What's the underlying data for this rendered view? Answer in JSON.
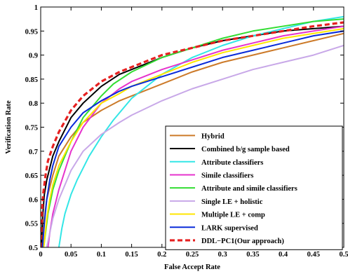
{
  "chart_data": {
    "type": "line",
    "title": "",
    "xlabel": "False Accept Rate",
    "ylabel": "Verification Rate",
    "xlim": [
      0,
      0.5
    ],
    "ylim": [
      0.5,
      1
    ],
    "x_ticks": [
      0,
      0.05,
      0.1,
      0.15,
      0.2,
      0.25,
      0.3,
      0.35,
      0.4,
      0.45,
      0.5
    ],
    "x_tick_labels": [
      "0",
      "0.05",
      "0.1",
      "0.15",
      "0.2",
      "0.25",
      "0.3",
      "0.35",
      "0.4",
      "0.45",
      "0.5"
    ],
    "y_ticks": [
      0.5,
      0.55,
      0.6,
      0.65,
      0.7,
      0.75,
      0.8,
      0.85,
      0.9,
      0.95,
      1
    ],
    "y_tick_labels": [
      "0.5",
      "0.55",
      "0.6",
      "0.65",
      "0.7",
      "0.75",
      "0.8",
      "0.85",
      "0.9",
      "0.95",
      "1"
    ],
    "grid": false,
    "legend_position": "bottom-right",
    "series": [
      {
        "name": "Hybrid",
        "color": "#cc7a29",
        "dash": false,
        "x": [
          0.002,
          0.005,
          0.01,
          0.02,
          0.03,
          0.05,
          0.07,
          0.1,
          0.13,
          0.15,
          0.2,
          0.25,
          0.3,
          0.35,
          0.4,
          0.45,
          0.5
        ],
        "y": [
          0.5,
          0.55,
          0.6,
          0.65,
          0.69,
          0.73,
          0.76,
          0.785,
          0.805,
          0.815,
          0.84,
          0.865,
          0.885,
          0.9,
          0.915,
          0.93,
          0.945
        ]
      },
      {
        "name": "Combined b/g sample based",
        "color": "#000000",
        "dash": false,
        "x": [
          0.001,
          0.003,
          0.006,
          0.01,
          0.02,
          0.03,
          0.05,
          0.07,
          0.1,
          0.13,
          0.15,
          0.2,
          0.25,
          0.3,
          0.35,
          0.4,
          0.45,
          0.5
        ],
        "y": [
          0.5,
          0.56,
          0.61,
          0.64,
          0.69,
          0.72,
          0.77,
          0.8,
          0.835,
          0.86,
          0.87,
          0.895,
          0.915,
          0.93,
          0.94,
          0.95,
          0.955,
          0.96
        ]
      },
      {
        "name": "Attribute classifiers",
        "color": "#33e6e6",
        "dash": false,
        "x": [
          0.03,
          0.035,
          0.04,
          0.05,
          0.06,
          0.08,
          0.1,
          0.12,
          0.15,
          0.2,
          0.25,
          0.3,
          0.35,
          0.4,
          0.45,
          0.5
        ],
        "y": [
          0.5,
          0.54,
          0.57,
          0.61,
          0.64,
          0.69,
          0.73,
          0.765,
          0.81,
          0.86,
          0.895,
          0.92,
          0.94,
          0.955,
          0.97,
          0.98
        ]
      },
      {
        "name": "Simile classifiers",
        "color": "#e633cc",
        "dash": false,
        "x": [
          0.012,
          0.015,
          0.02,
          0.03,
          0.04,
          0.05,
          0.07,
          0.1,
          0.13,
          0.15,
          0.2,
          0.25,
          0.3,
          0.35,
          0.4,
          0.45,
          0.5
        ],
        "y": [
          0.5,
          0.53,
          0.57,
          0.62,
          0.66,
          0.7,
          0.75,
          0.8,
          0.83,
          0.845,
          0.87,
          0.89,
          0.91,
          0.925,
          0.94,
          0.95,
          0.96
        ]
      },
      {
        "name": "Attribute and simile classifiers",
        "color": "#33dd33",
        "dash": false,
        "x": [
          0.005,
          0.008,
          0.012,
          0.02,
          0.03,
          0.04,
          0.05,
          0.07,
          0.1,
          0.12,
          0.15,
          0.2,
          0.25,
          0.3,
          0.35,
          0.4,
          0.45,
          0.5
        ],
        "y": [
          0.5,
          0.53,
          0.57,
          0.62,
          0.66,
          0.69,
          0.72,
          0.77,
          0.815,
          0.84,
          0.865,
          0.895,
          0.915,
          0.935,
          0.95,
          0.96,
          0.97,
          0.975
        ]
      },
      {
        "name": "Single LE + holistic",
        "color": "#c8a8e8",
        "dash": false,
        "x": [
          0.01,
          0.015,
          0.02,
          0.03,
          0.04,
          0.05,
          0.07,
          0.1,
          0.13,
          0.15,
          0.2,
          0.25,
          0.3,
          0.35,
          0.4,
          0.45,
          0.5
        ],
        "y": [
          0.5,
          0.53,
          0.56,
          0.6,
          0.63,
          0.66,
          0.7,
          0.735,
          0.76,
          0.775,
          0.805,
          0.83,
          0.85,
          0.87,
          0.885,
          0.9,
          0.92
        ]
      },
      {
        "name": "Multiple LE + comp",
        "color": "#ffe600",
        "dash": false,
        "x": [
          0.005,
          0.01,
          0.015,
          0.02,
          0.03,
          0.05,
          0.07,
          0.1,
          0.13,
          0.15,
          0.2,
          0.25,
          0.3,
          0.35,
          0.4,
          0.45,
          0.5
        ],
        "y": [
          0.5,
          0.56,
          0.6,
          0.63,
          0.67,
          0.72,
          0.76,
          0.8,
          0.82,
          0.835,
          0.86,
          0.885,
          0.905,
          0.92,
          0.935,
          0.945,
          0.955
        ]
      },
      {
        "name": "LARK supervised",
        "color": "#0a2bd9",
        "dash": false,
        "x": [
          0.003,
          0.006,
          0.01,
          0.015,
          0.02,
          0.03,
          0.05,
          0.07,
          0.1,
          0.13,
          0.15,
          0.2,
          0.25,
          0.3,
          0.35,
          0.4,
          0.45,
          0.5
        ],
        "y": [
          0.5,
          0.55,
          0.6,
          0.64,
          0.67,
          0.71,
          0.75,
          0.78,
          0.805,
          0.825,
          0.835,
          0.855,
          0.875,
          0.895,
          0.91,
          0.925,
          0.94,
          0.95
        ]
      },
      {
        "name": "DDL−PC1(Our approach)",
        "color": "#e62020",
        "dash": true,
        "x": [
          0.0,
          0.002,
          0.004,
          0.008,
          0.012,
          0.02,
          0.03,
          0.05,
          0.07,
          0.1,
          0.13,
          0.15,
          0.2,
          0.25,
          0.3,
          0.35,
          0.4,
          0.45,
          0.5
        ],
        "y": [
          0.5,
          0.57,
          0.61,
          0.65,
          0.68,
          0.71,
          0.74,
          0.785,
          0.815,
          0.845,
          0.865,
          0.875,
          0.9,
          0.915,
          0.93,
          0.94,
          0.95,
          0.96,
          0.968
        ]
      }
    ]
  }
}
